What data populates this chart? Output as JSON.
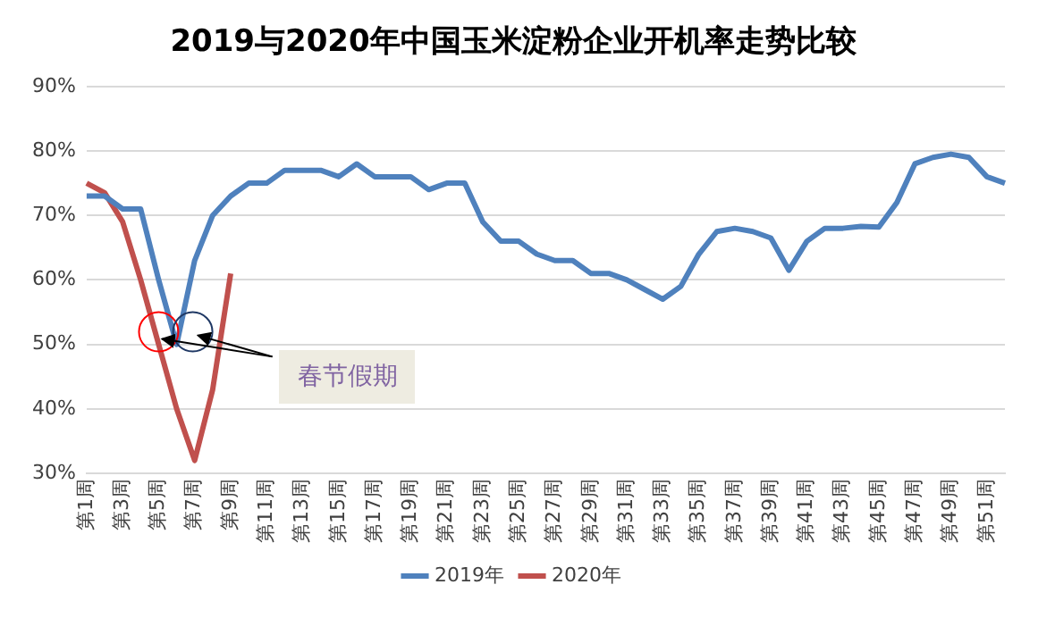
{
  "chart_data": {
    "type": "line",
    "title": "2019与2020年中国玉米淀粉企业开机率走势比较",
    "categories": [
      "第1周",
      null,
      "第3周",
      null,
      "第5周",
      null,
      "第7周",
      null,
      "第9周",
      null,
      "第11周",
      null,
      "第13周",
      null,
      "第15周",
      null,
      "第17周",
      null,
      "第19周",
      null,
      "第21周",
      null,
      "第23周",
      null,
      "第25周",
      null,
      "第27周",
      null,
      "第29周",
      null,
      "第31周",
      null,
      "第33周",
      null,
      "第35周",
      null,
      "第37周",
      null,
      "第39周",
      null,
      "第41周",
      null,
      "第43周",
      null,
      "第45周",
      null,
      "第47周",
      null,
      "第49周",
      null,
      "第51周",
      null
    ],
    "series": [
      {
        "name": "2019年",
        "color": "#4f81bd",
        "values": [
          73,
          73,
          71,
          71,
          60,
          50,
          63,
          70,
          73,
          75,
          75,
          77,
          77,
          77,
          76,
          78,
          76,
          76,
          76,
          74,
          75,
          75,
          69,
          66,
          66,
          64,
          63,
          63,
          61,
          61,
          60,
          58.5,
          57,
          59,
          64,
          67.5,
          68,
          67.5,
          66.5,
          61.5,
          66,
          68,
          68,
          68.3,
          68.2,
          72,
          78,
          79,
          79.5,
          79,
          76,
          75
        ]
      },
      {
        "name": "2020年",
        "color": "#c0504d",
        "values": [
          75,
          73.5,
          69,
          60,
          50,
          40,
          32,
          43,
          61,
          null,
          null,
          null,
          null,
          null,
          null,
          null,
          null,
          null,
          null,
          null,
          null,
          null,
          null,
          null,
          null,
          null,
          null,
          null,
          null,
          null,
          null,
          null,
          null,
          null,
          null,
          null,
          null,
          null,
          null,
          null,
          null,
          null,
          null,
          null,
          null,
          null,
          null,
          null,
          null,
          null,
          null,
          null
        ]
      }
    ],
    "ylim": [
      30,
      90
    ],
    "yticks": [
      {
        "value": 30,
        "label": "30%"
      },
      {
        "value": 40,
        "label": "40%"
      },
      {
        "value": 50,
        "label": "50%"
      },
      {
        "value": 60,
        "label": "60%"
      },
      {
        "value": 70,
        "label": "70%"
      },
      {
        "value": 80,
        "label": "80%"
      },
      {
        "value": 90,
        "label": "90%"
      }
    ],
    "grid": "y",
    "legend": "bottom",
    "marker": "none",
    "line_style": "solid",
    "annotations": [
      {
        "text": "春节假期",
        "x": "第5周",
        "y": 50
      }
    ]
  }
}
